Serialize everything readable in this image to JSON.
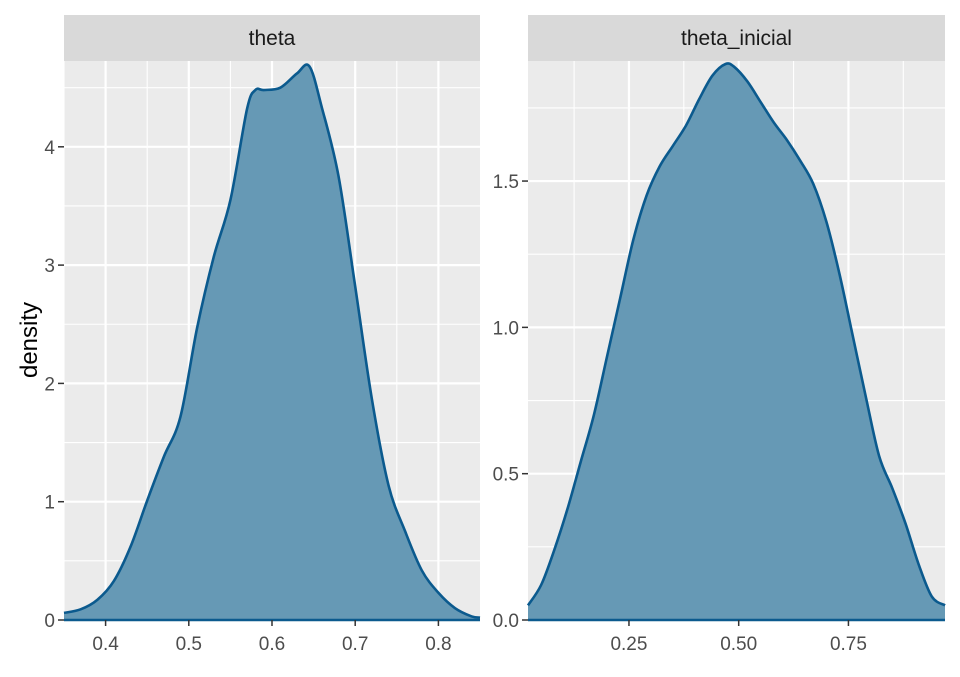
{
  "chart_data": {
    "type": "area",
    "ylabel": "density",
    "xlabel": "",
    "colors": {
      "fill": "#6699b5",
      "stroke": "#0b5a8e",
      "panel_bg": "#ebebeb",
      "strip_bg": "#d9d9d9",
      "grid": "#ffffff"
    },
    "panels": [
      {
        "name": "theta",
        "xlim": [
          0.35,
          0.85
        ],
        "ylim": [
          0,
          4.7
        ],
        "x_ticks": [
          0.4,
          0.5,
          0.6,
          0.7,
          0.8
        ],
        "x_tick_labels": [
          "0.4",
          "0.5",
          "0.6",
          "0.7",
          "0.8"
        ],
        "y_ticks": [
          0,
          1,
          2,
          3,
          4
        ],
        "y_tick_labels": [
          "0",
          "1",
          "2",
          "3",
          "4"
        ],
        "x": [
          0.35,
          0.37,
          0.39,
          0.41,
          0.43,
          0.45,
          0.47,
          0.49,
          0.51,
          0.53,
          0.55,
          0.57,
          0.58,
          0.59,
          0.61,
          0.63,
          0.645,
          0.66,
          0.68,
          0.7,
          0.72,
          0.74,
          0.76,
          0.78,
          0.8,
          0.82,
          0.84,
          0.85
        ],
        "y": [
          0.06,
          0.09,
          0.17,
          0.33,
          0.62,
          1.01,
          1.38,
          1.72,
          2.47,
          3.07,
          3.55,
          4.32,
          4.48,
          4.48,
          4.5,
          4.62,
          4.68,
          4.33,
          3.75,
          2.82,
          1.87,
          1.14,
          0.75,
          0.42,
          0.23,
          0.1,
          0.03,
          0.02
        ]
      },
      {
        "name": "theta_inicial",
        "xlim": [
          0.02,
          0.97
        ],
        "ylim": [
          0,
          1.9
        ],
        "x_ticks": [
          0.25,
          0.5,
          0.75
        ],
        "x_tick_labels": [
          "0.25",
          "0.50",
          "0.75"
        ],
        "y_ticks": [
          0.0,
          0.5,
          1.0,
          1.5
        ],
        "y_tick_labels": [
          "0.0",
          "0.5",
          "1.0",
          "1.5"
        ],
        "x": [
          0.02,
          0.05,
          0.08,
          0.11,
          0.14,
          0.17,
          0.2,
          0.23,
          0.26,
          0.29,
          0.32,
          0.35,
          0.38,
          0.41,
          0.44,
          0.47,
          0.49,
          0.52,
          0.55,
          0.58,
          0.61,
          0.64,
          0.67,
          0.7,
          0.73,
          0.76,
          0.79,
          0.82,
          0.85,
          0.88,
          0.91,
          0.94,
          0.97
        ],
        "y": [
          0.05,
          0.12,
          0.24,
          0.38,
          0.54,
          0.7,
          0.9,
          1.1,
          1.3,
          1.45,
          1.55,
          1.62,
          1.69,
          1.78,
          1.86,
          1.9,
          1.89,
          1.84,
          1.77,
          1.7,
          1.64,
          1.57,
          1.49,
          1.36,
          1.18,
          0.97,
          0.76,
          0.56,
          0.45,
          0.33,
          0.19,
          0.08,
          0.05
        ]
      }
    ]
  }
}
